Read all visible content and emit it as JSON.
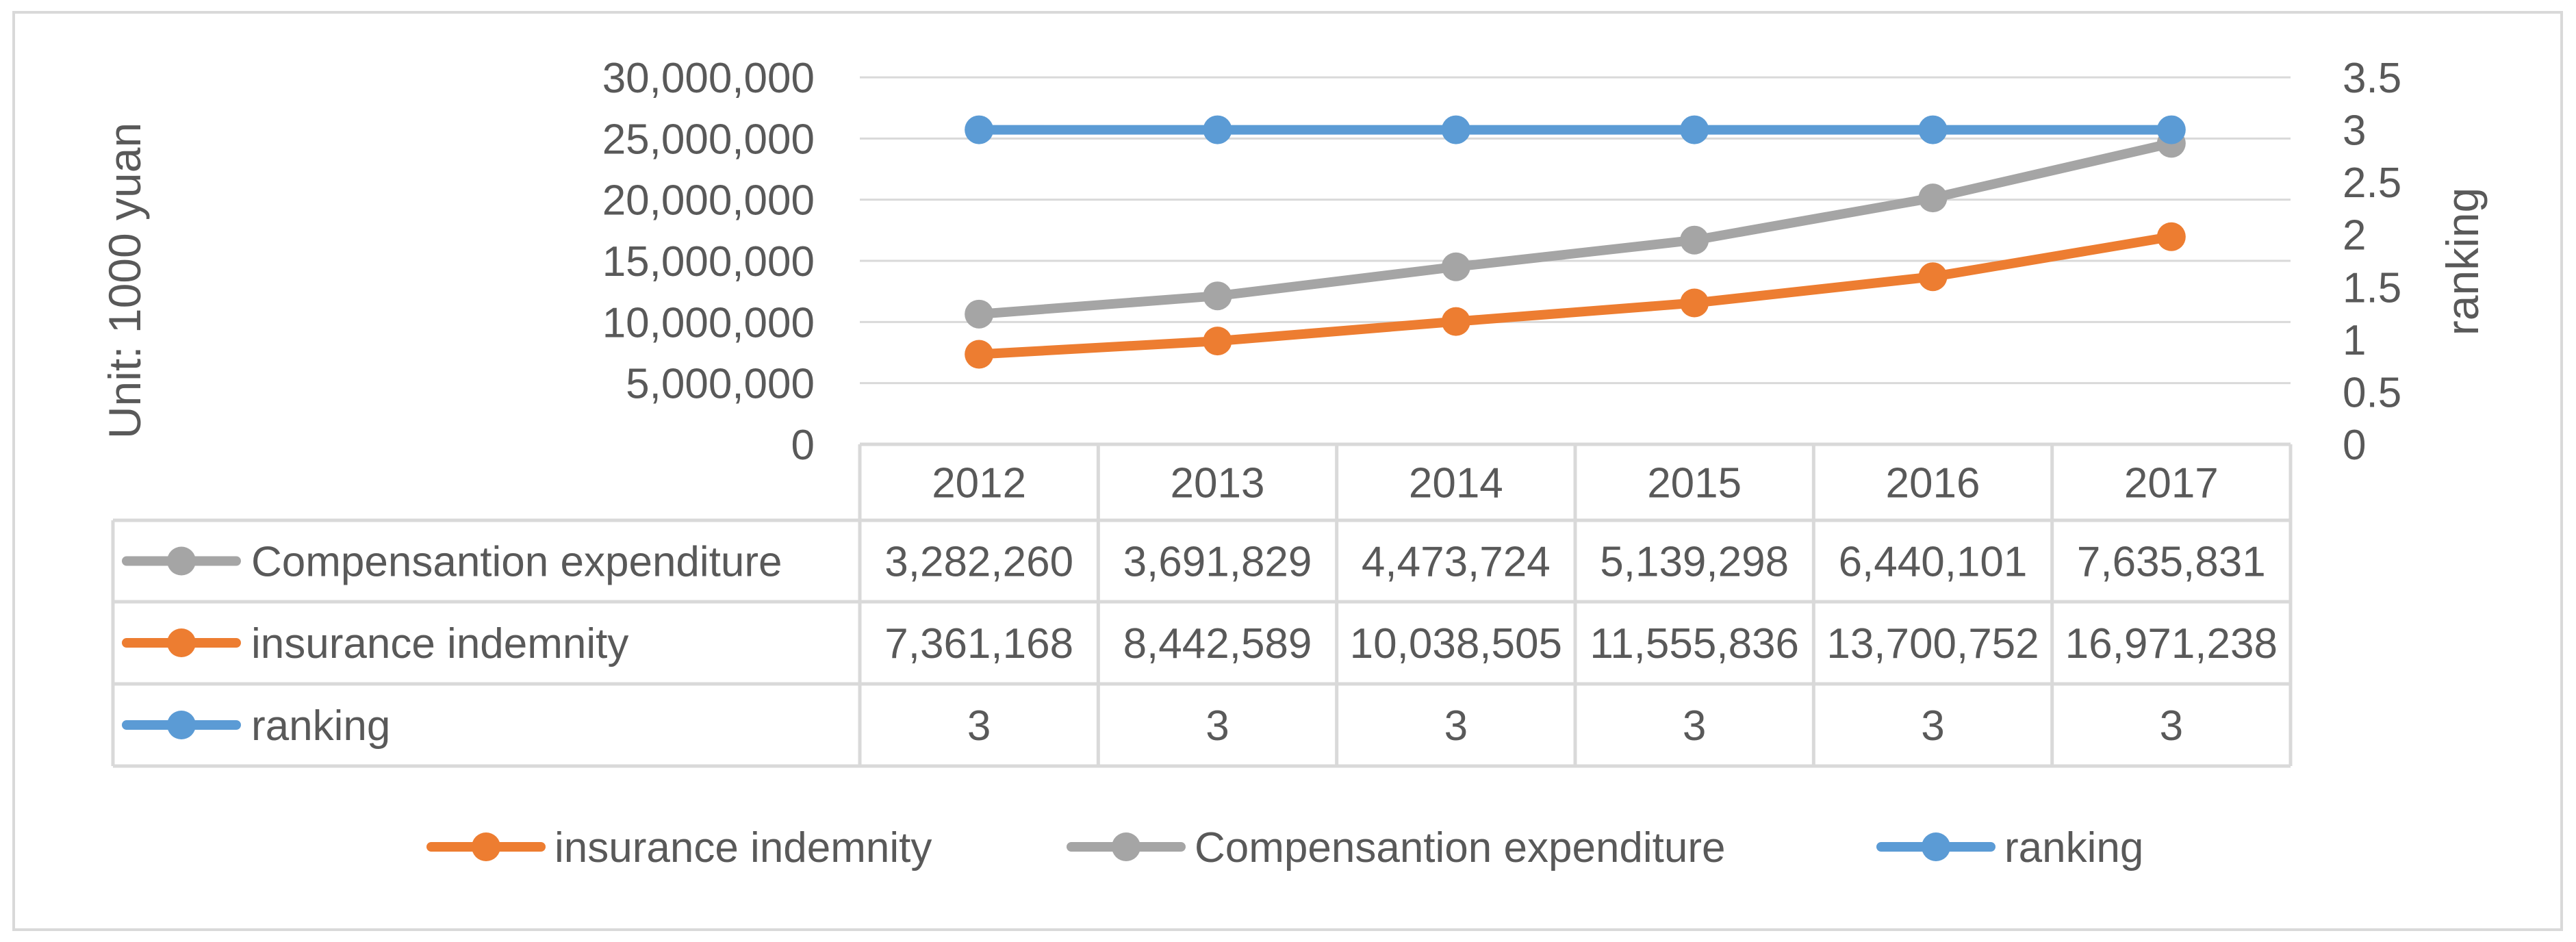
{
  "chart_data": {
    "type": "line",
    "categories": [
      "2012",
      "2013",
      "2014",
      "2015",
      "2016",
      "2017"
    ],
    "series": [
      {
        "name": "Compensantion expenditure",
        "axis": "left",
        "color": "#A5A5A5",
        "values": [
          3282260,
          3691829,
          4473724,
          5139298,
          6440101,
          7635831
        ],
        "table_labels": [
          "3,282,260",
          "3,691,829",
          "4,473,724",
          "5,139,298",
          "6,440,101",
          "7,635,831"
        ]
      },
      {
        "name": "insurance indemnity",
        "axis": "left",
        "color": "#ED7D31",
        "values": [
          7361168,
          8442589,
          10038505,
          11555836,
          13700752,
          16971238
        ],
        "table_labels": [
          "7,361,168",
          "8,442,589",
          "10,038,505",
          "11,555,836",
          "13,700,752",
          "16,971,238"
        ]
      },
      {
        "name": "ranking",
        "axis": "right",
        "color": "#5B9BD5",
        "values": [
          3,
          3,
          3,
          3,
          3,
          3
        ],
        "table_labels": [
          "3",
          "3",
          "3",
          "3",
          "3",
          "3"
        ]
      }
    ],
    "plotted_gray_values": [
      10643428,
      12134418,
      14512229,
      16695134,
      20140853,
      24607069
    ],
    "y_left": {
      "label": "Unit: 1000 yuan",
      "range": [
        0,
        30000000
      ],
      "ticks": [
        0,
        5000000,
        10000000,
        15000000,
        20000000,
        25000000,
        30000000
      ],
      "tick_labels": [
        "0",
        "5,000,000",
        "10,000,000",
        "15,000,000",
        "20,000,000",
        "25,000,000",
        "30,000,000"
      ]
    },
    "y_right": {
      "label": "ranking",
      "range": [
        0,
        3.5
      ],
      "ticks": [
        0,
        0.5,
        1,
        1.5,
        2,
        2.5,
        3,
        3.5
      ],
      "tick_labels": [
        "0",
        "0.5",
        "1",
        "1.5",
        "2",
        "2.5",
        "3",
        "3.5"
      ]
    },
    "grid": true,
    "legend": {
      "position": "bottom",
      "order": [
        "insurance indemnity",
        "Compensantion expenditure",
        "ranking"
      ]
    },
    "data_table": true
  }
}
